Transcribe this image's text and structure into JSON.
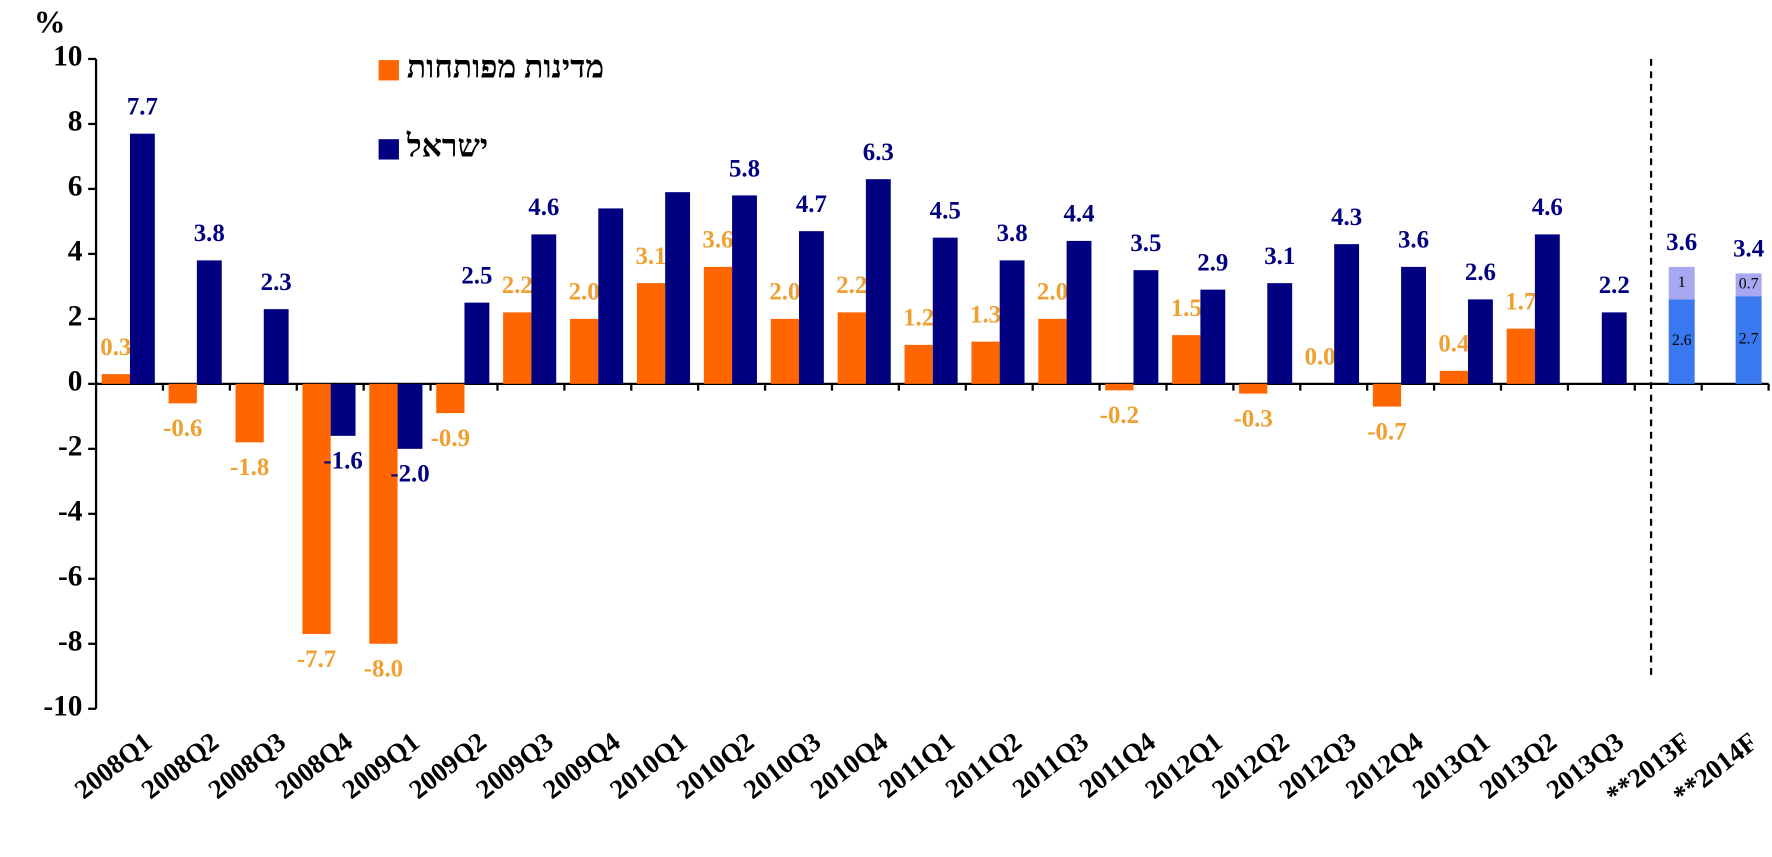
{
  "chart_data": {
    "type": "bar",
    "y_label": "%",
    "categories": [
      "2008Q1",
      "2008Q2",
      "2008Q3",
      "2008Q4",
      "2009Q1",
      "2009Q2",
      "2009Q3",
      "2009Q4",
      "2010Q1",
      "2010Q2",
      "2010Q3",
      "2010Q4",
      "2011Q1",
      "2011Q2",
      "2011Q3",
      "2011Q4",
      "2012Q1",
      "2012Q2",
      "2012Q3",
      "2012Q4",
      "2013Q1",
      "2013Q2",
      "2013Q3",
      "**2013F",
      "**2014F"
    ],
    "ylim": [
      -10,
      10
    ],
    "yticks": [
      -10,
      -8,
      -6,
      -4,
      -2,
      0,
      2,
      4,
      6,
      8,
      10
    ],
    "legend": "top-left",
    "series": [
      {
        "name": "מדינות מפותחות",
        "color": "#ff6600",
        "label_color": "#f0a030",
        "values": [
          0.3,
          -0.6,
          -1.8,
          -7.7,
          -8.0,
          -0.9,
          2.2,
          2.0,
          3.1,
          3.6,
          2.0,
          2.2,
          1.2,
          1.3,
          2.0,
          -0.2,
          1.5,
          -0.3,
          0.0,
          -0.7,
          0.4,
          1.7,
          null,
          null,
          null
        ],
        "value_labels": [
          "0.3",
          "-0.6",
          "-1.8",
          "-7.7",
          "-8.0",
          "-0.9",
          "2.2",
          "2.0",
          "3.1",
          "3.6",
          "2.0",
          "2.2",
          "1.2",
          "1.3",
          "2.0",
          "-0.2",
          "1.5",
          "-0.3",
          "0.0",
          "-0.7",
          "0.4",
          "1.7",
          null,
          null,
          null
        ]
      },
      {
        "name": "ישראל",
        "color": "#000080",
        "label_color": "#000080",
        "values": [
          7.7,
          3.8,
          2.3,
          -1.6,
          -2.0,
          2.5,
          4.6,
          5.4,
          5.9,
          5.8,
          4.7,
          6.3,
          4.5,
          3.8,
          4.4,
          3.5,
          2.9,
          3.1,
          4.3,
          3.6,
          2.6,
          4.6,
          2.2,
          null,
          null
        ],
        "value_labels": [
          "7.7",
          "3.8",
          "2.3",
          "-1.6",
          "-2.0",
          "2.5",
          "4.6",
          null,
          null,
          "5.8",
          "4.7",
          "6.3",
          "4.5",
          "3.8",
          "4.4",
          "3.5",
          "2.9",
          "3.1",
          "4.3",
          "3.6",
          "2.6",
          "4.6",
          "2.2",
          null,
          null
        ]
      },
      {
        "color": "#3a78f0",
        "values": [
          null,
          null,
          null,
          null,
          null,
          null,
          null,
          null,
          null,
          null,
          null,
          null,
          null,
          null,
          null,
          null,
          null,
          null,
          null,
          null,
          null,
          null,
          null,
          2.6,
          2.7
        ]
      },
      {
        "color": "#a8a8f0",
        "values": [
          null,
          null,
          null,
          null,
          null,
          null,
          null,
          null,
          null,
          null,
          null,
          null,
          null,
          null,
          null,
          null,
          null,
          null,
          null,
          null,
          null,
          null,
          null,
          1,
          0.7
        ]
      }
    ],
    "total_labels": [
      null,
      null,
      null,
      null,
      null,
      null,
      null,
      null,
      null,
      null,
      null,
      null,
      null,
      null,
      null,
      null,
      null,
      null,
      null,
      null,
      null,
      null,
      null,
      "3.6",
      "3.4"
    ]
  }
}
